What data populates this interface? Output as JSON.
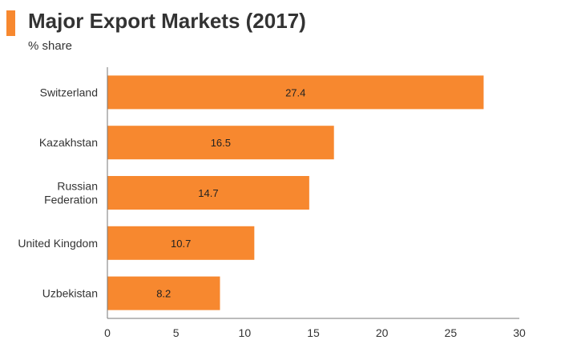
{
  "header": {
    "title": "Major Export Markets (2017)",
    "subtitle": "% share",
    "accent_color": "#F7882F"
  },
  "chart_data": {
    "type": "bar",
    "orientation": "horizontal",
    "categories": [
      "Switzerland",
      "Kazakhstan",
      "Russian Federation",
      "United Kingdom",
      "Uzbekistan"
    ],
    "category_lines": [
      [
        "Switzerland"
      ],
      [
        "Kazakhstan"
      ],
      [
        "Russian",
        "Federation"
      ],
      [
        "United Kingdom"
      ],
      [
        "Uzbekistan"
      ]
    ],
    "values": [
      27.4,
      16.5,
      14.7,
      10.7,
      8.2
    ],
    "data_labels": [
      "27.4",
      "16.5",
      "14.7",
      "10.7",
      "8.2"
    ],
    "title": "Major Export Markets (2017)",
    "subtitle": "% share",
    "xlabel": "",
    "ylabel": "",
    "xlim": [
      0,
      30
    ],
    "xticks": [
      0,
      5,
      10,
      15,
      20,
      25,
      30
    ],
    "tick_labels": [
      "0",
      "5",
      "10",
      "15",
      "20",
      "25",
      "30"
    ],
    "bar_color": "#F7882F",
    "grid": false,
    "legend": "none"
  }
}
